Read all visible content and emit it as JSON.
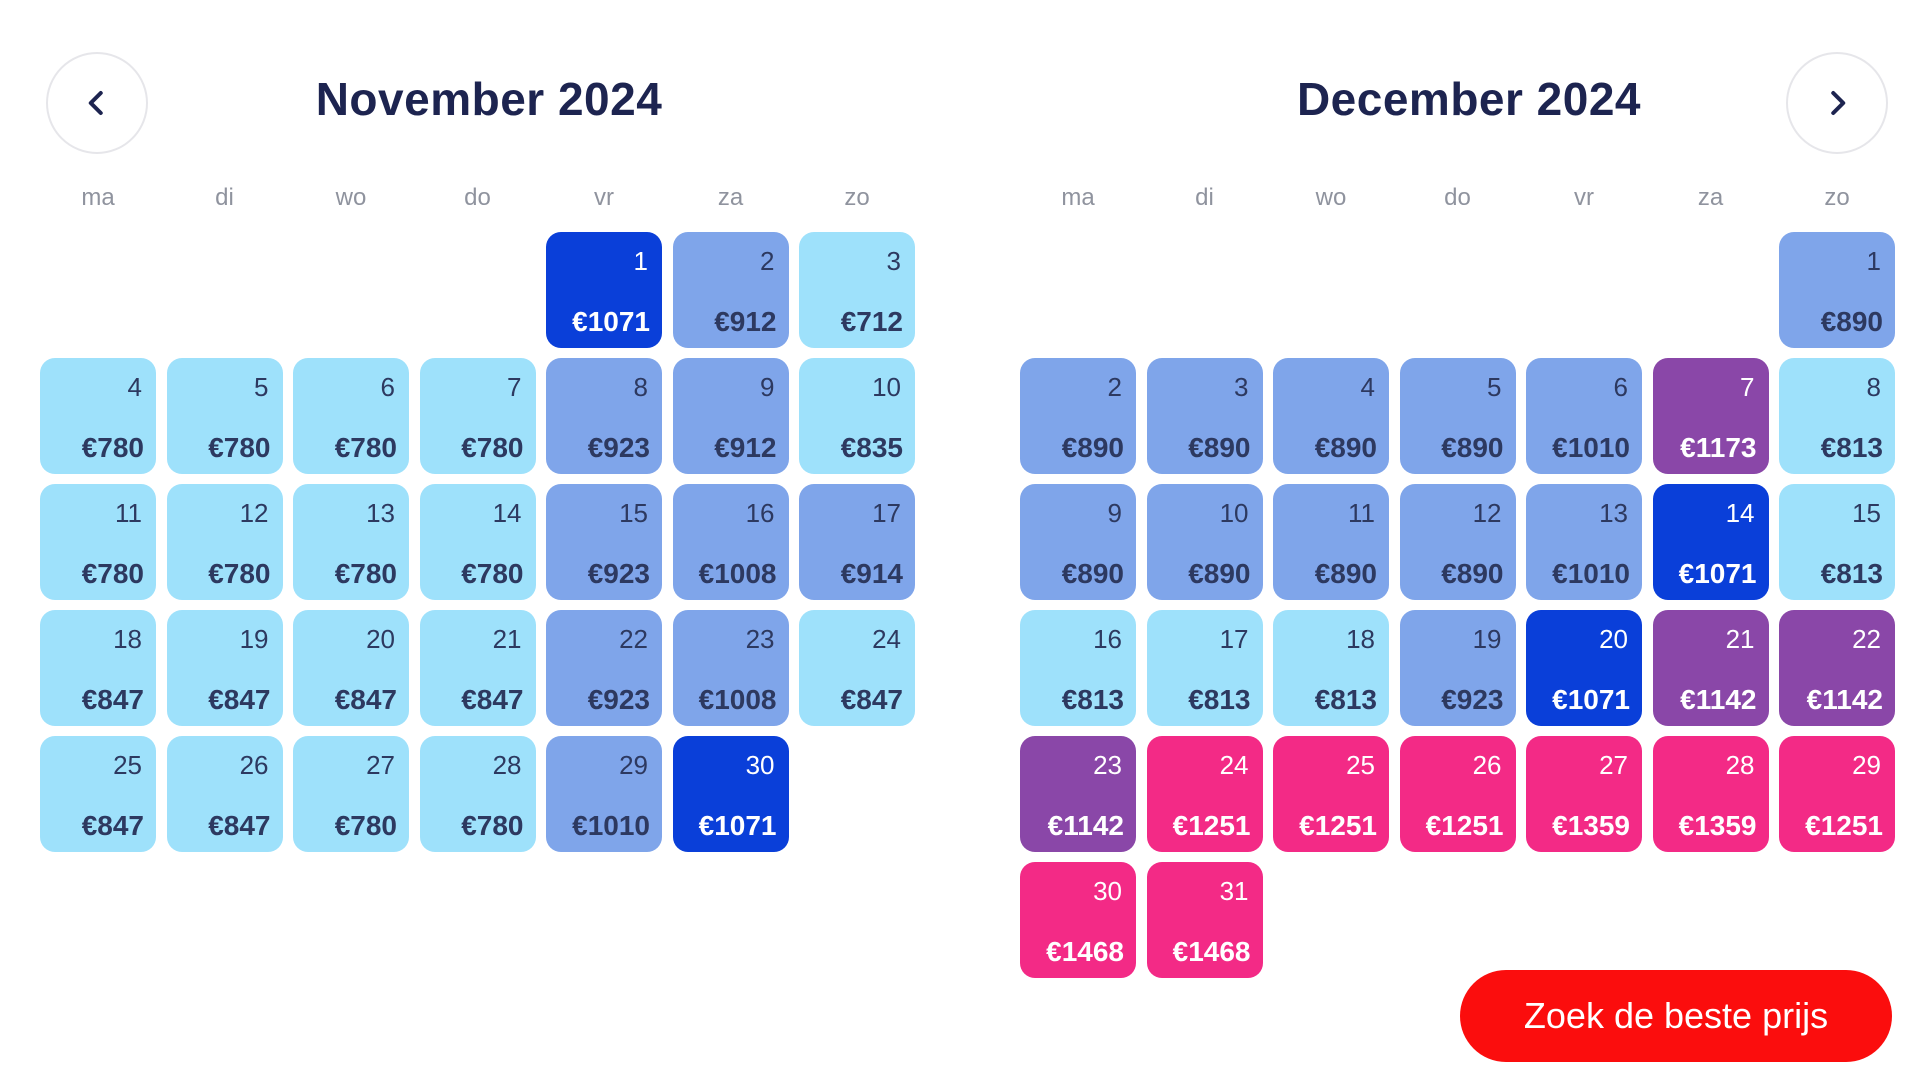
{
  "navigation": {
    "prev_icon": "chevron-left-icon",
    "next_icon": "chevron-right-icon"
  },
  "colors": {
    "light": "#9ee1fb",
    "mid": "#7fa5ea",
    "dark": "#0a3fd9",
    "purple": "#8a47a8",
    "pink": "#f32a86",
    "cta": "#fb0d0d",
    "title": "#1d2450"
  },
  "weekdays": [
    "ma",
    "di",
    "wo",
    "do",
    "vr",
    "za",
    "zo"
  ],
  "months": [
    {
      "id": "nov",
      "title": "November 2024",
      "start_weekday": 4,
      "days": [
        {
          "day": "1",
          "price": "€1071",
          "level": "dark"
        },
        {
          "day": "2",
          "price": "€912",
          "level": "mid"
        },
        {
          "day": "3",
          "price": "€712",
          "level": "light"
        },
        {
          "day": "4",
          "price": "€780",
          "level": "light"
        },
        {
          "day": "5",
          "price": "€780",
          "level": "light"
        },
        {
          "day": "6",
          "price": "€780",
          "level": "light"
        },
        {
          "day": "7",
          "price": "€780",
          "level": "light"
        },
        {
          "day": "8",
          "price": "€923",
          "level": "mid"
        },
        {
          "day": "9",
          "price": "€912",
          "level": "mid"
        },
        {
          "day": "10",
          "price": "€835",
          "level": "light"
        },
        {
          "day": "11",
          "price": "€780",
          "level": "light"
        },
        {
          "day": "12",
          "price": "€780",
          "level": "light"
        },
        {
          "day": "13",
          "price": "€780",
          "level": "light"
        },
        {
          "day": "14",
          "price": "€780",
          "level": "light"
        },
        {
          "day": "15",
          "price": "€923",
          "level": "mid"
        },
        {
          "day": "16",
          "price": "€1008",
          "level": "mid"
        },
        {
          "day": "17",
          "price": "€914",
          "level": "mid"
        },
        {
          "day": "18",
          "price": "€847",
          "level": "light"
        },
        {
          "day": "19",
          "price": "€847",
          "level": "light"
        },
        {
          "day": "20",
          "price": "€847",
          "level": "light"
        },
        {
          "day": "21",
          "price": "€847",
          "level": "light"
        },
        {
          "day": "22",
          "price": "€923",
          "level": "mid"
        },
        {
          "day": "23",
          "price": "€1008",
          "level": "mid"
        },
        {
          "day": "24",
          "price": "€847",
          "level": "light"
        },
        {
          "day": "25",
          "price": "€847",
          "level": "light"
        },
        {
          "day": "26",
          "price": "€847",
          "level": "light"
        },
        {
          "day": "27",
          "price": "€780",
          "level": "light"
        },
        {
          "day": "28",
          "price": "€780",
          "level": "light"
        },
        {
          "day": "29",
          "price": "€1010",
          "level": "mid"
        },
        {
          "day": "30",
          "price": "€1071",
          "level": "dark"
        }
      ]
    },
    {
      "id": "dec",
      "title": "December 2024",
      "start_weekday": 6,
      "days": [
        {
          "day": "1",
          "price": "€890",
          "level": "mid"
        },
        {
          "day": "2",
          "price": "€890",
          "level": "mid"
        },
        {
          "day": "3",
          "price": "€890",
          "level": "mid"
        },
        {
          "day": "4",
          "price": "€890",
          "level": "mid"
        },
        {
          "day": "5",
          "price": "€890",
          "level": "mid"
        },
        {
          "day": "6",
          "price": "€1010",
          "level": "mid"
        },
        {
          "day": "7",
          "price": "€1173",
          "level": "purple"
        },
        {
          "day": "8",
          "price": "€813",
          "level": "light"
        },
        {
          "day": "9",
          "price": "€890",
          "level": "mid"
        },
        {
          "day": "10",
          "price": "€890",
          "level": "mid"
        },
        {
          "day": "11",
          "price": "€890",
          "level": "mid"
        },
        {
          "day": "12",
          "price": "€890",
          "level": "mid"
        },
        {
          "day": "13",
          "price": "€1010",
          "level": "mid"
        },
        {
          "day": "14",
          "price": "€1071",
          "level": "dark"
        },
        {
          "day": "15",
          "price": "€813",
          "level": "light"
        },
        {
          "day": "16",
          "price": "€813",
          "level": "light"
        },
        {
          "day": "17",
          "price": "€813",
          "level": "light"
        },
        {
          "day": "18",
          "price": "€813",
          "level": "light"
        },
        {
          "day": "19",
          "price": "€923",
          "level": "mid"
        },
        {
          "day": "20",
          "price": "€1071",
          "level": "dark"
        },
        {
          "day": "21",
          "price": "€1142",
          "level": "purple"
        },
        {
          "day": "22",
          "price": "€1142",
          "level": "purple"
        },
        {
          "day": "23",
          "price": "€1142",
          "level": "purple"
        },
        {
          "day": "24",
          "price": "€1251",
          "level": "pink"
        },
        {
          "day": "25",
          "price": "€1251",
          "level": "pink"
        },
        {
          "day": "26",
          "price": "€1251",
          "level": "pink"
        },
        {
          "day": "27",
          "price": "€1359",
          "level": "pink"
        },
        {
          "day": "28",
          "price": "€1359",
          "level": "pink"
        },
        {
          "day": "29",
          "price": "€1251",
          "level": "pink"
        },
        {
          "day": "30",
          "price": "€1468",
          "level": "pink"
        },
        {
          "day": "31",
          "price": "€1468",
          "level": "pink"
        }
      ]
    }
  ],
  "cta": {
    "label": "Zoek de beste prijs"
  }
}
